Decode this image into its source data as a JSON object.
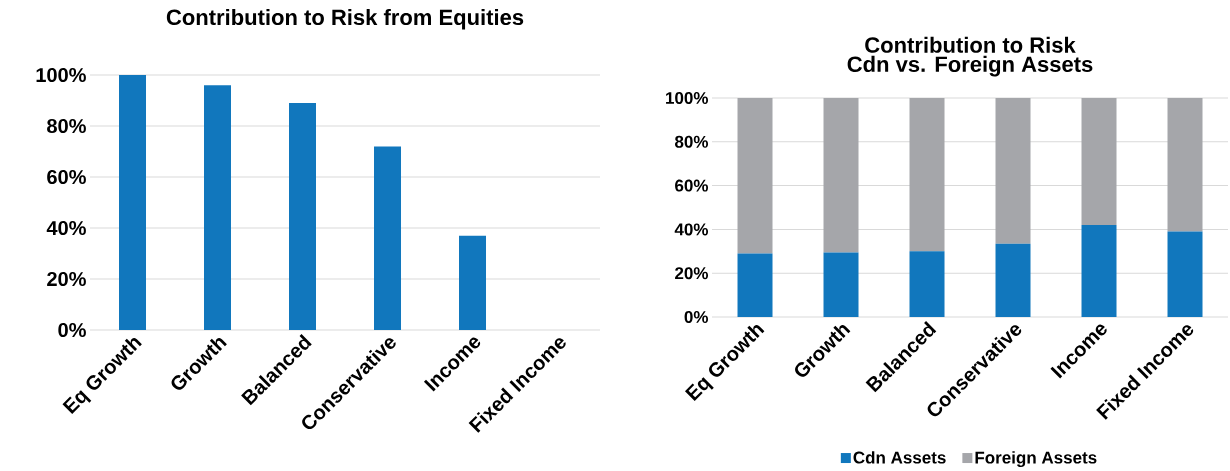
{
  "chart_data": [
    {
      "type": "bar",
      "title": "Contribution to Risk from Equities",
      "categories": [
        "Eq Growth",
        "Growth",
        "Balanced",
        "Conservative",
        "Income",
        "Fixed Income"
      ],
      "series": [
        {
          "color": "#1177bd",
          "values": [
            100,
            96,
            89,
            72,
            37,
            0
          ]
        }
      ],
      "ylim": [
        0,
        100
      ],
      "yticks": [
        {
          "value": 0,
          "label": "0%"
        },
        {
          "value": 20,
          "label": "20%"
        },
        {
          "value": 40,
          "label": "40%"
        },
        {
          "value": 60,
          "label": "60%"
        },
        {
          "value": 80,
          "label": "80%"
        },
        {
          "value": 100,
          "label": "100%"
        }
      ],
      "grid": "y",
      "legend": false
    },
    {
      "type": "bar",
      "title": "Contribution to Risk",
      "subtitle": "Cdn vs. Foreign Assets",
      "categories": [
        "Eq Growth",
        "Growth",
        "Balanced",
        "Conservative",
        "Income",
        "Fixed Income"
      ],
      "stacked": true,
      "series": [
        {
          "name": "Cdn Assets",
          "color": "#1177bd",
          "values": [
            29,
            29.5,
            30,
            33.5,
            42,
            39
          ]
        },
        {
          "name": "Foreign Assets",
          "color": "#a5a6aa",
          "values": [
            71,
            70.5,
            70,
            66.5,
            58,
            61
          ]
        }
      ],
      "ylim": [
        0,
        100
      ],
      "yticks": [
        {
          "value": 0,
          "label": "0%"
        },
        {
          "value": 20,
          "label": "20%"
        },
        {
          "value": 40,
          "label": "40%"
        },
        {
          "value": 60,
          "label": "60%"
        },
        {
          "value": 80,
          "label": "80%"
        },
        {
          "value": 100,
          "label": "100%"
        }
      ],
      "grid": "y",
      "legend": "bottom"
    }
  ]
}
